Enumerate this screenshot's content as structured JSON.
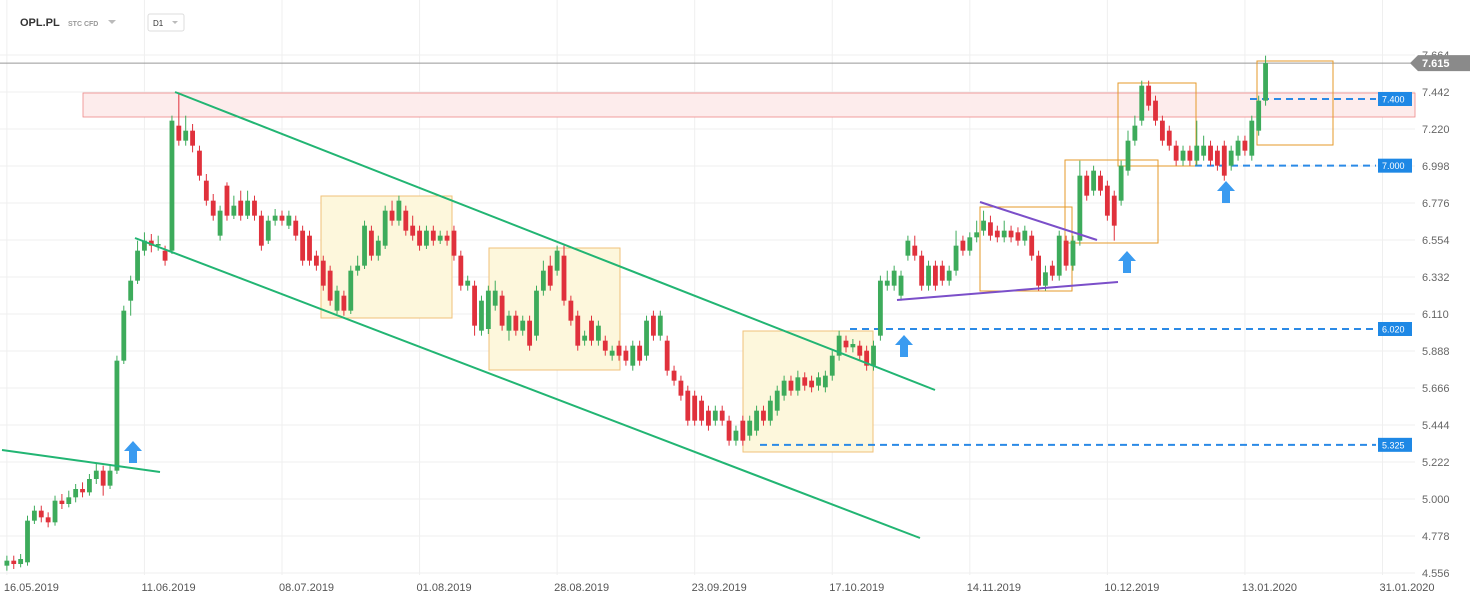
{
  "header": {
    "symbol": "OPL.PL",
    "instrument": "STC CFD",
    "interval": "D1"
  },
  "chart_data": {
    "type": "candlestick",
    "up_color": "#3dab5b",
    "down_color": "#e0313c",
    "ylim": [
      4.544,
      7.994
    ],
    "yticks": [
      {
        "value": 7.664,
        "label": "7.664"
      },
      {
        "value": 7.442,
        "label": "7.442"
      },
      {
        "value": 7.22,
        "label": "7.220"
      },
      {
        "value": 6.998,
        "label": "6.998"
      },
      {
        "value": 6.776,
        "label": "6.776"
      },
      {
        "value": 6.554,
        "label": "6.554"
      },
      {
        "value": 6.332,
        "label": "6.332"
      },
      {
        "value": 6.11,
        "label": "6.110"
      },
      {
        "value": 5.888,
        "label": "5.888"
      },
      {
        "value": 5.666,
        "label": "5.666"
      },
      {
        "value": 5.444,
        "label": "5.444"
      },
      {
        "value": 5.222,
        "label": "5.222"
      },
      {
        "value": 5,
        "label": "5.000"
      },
      {
        "value": 4.778,
        "label": "4.778"
      },
      {
        "value": 4.556,
        "label": "4.556"
      }
    ],
    "xlim": [
      -1,
      204
    ],
    "xticks": [
      {
        "value": 0,
        "label": "16.05.2019"
      },
      {
        "value": 20,
        "label": "11.06.2019"
      },
      {
        "value": 40,
        "label": "08.07.2019"
      },
      {
        "value": 60,
        "label": "01.08.2019"
      },
      {
        "value": 80,
        "label": "28.08.2019"
      },
      {
        "value": 100,
        "label": "23.09.2019"
      },
      {
        "value": 120,
        "label": "17.10.2019"
      },
      {
        "value": 140,
        "label": "14.11.2019"
      },
      {
        "value": 160,
        "label": "10.12.2019"
      },
      {
        "value": 180,
        "label": "13.01.2020"
      },
      {
        "value": 200,
        "label": "31.01.2020"
      }
    ],
    "grid": true,
    "last_price": 7.615,
    "levels": [
      {
        "value": 7.4,
        "label": "7.400"
      },
      {
        "value": 7,
        "label": "7.000"
      },
      {
        "value": 6.02,
        "label": "6.020"
      },
      {
        "value": 5.325,
        "label": "5.325"
      }
    ],
    "candles": [
      [
        4.6,
        4.66,
        4.57,
        4.63
      ],
      [
        4.63,
        4.66,
        4.58,
        4.61
      ],
      [
        4.61,
        4.67,
        4.59,
        4.64
      ],
      [
        4.62,
        4.9,
        4.6,
        4.87
      ],
      [
        4.87,
        4.96,
        4.85,
        4.93
      ],
      [
        4.93,
        4.96,
        4.86,
        4.89
      ],
      [
        4.89,
        4.92,
        4.83,
        4.86
      ],
      [
        4.86,
        5.02,
        4.84,
        4.99
      ],
      [
        4.99,
        5.03,
        4.94,
        4.97
      ],
      [
        4.97,
        5.05,
        4.95,
        5.01
      ],
      [
        5.01,
        5.09,
        4.98,
        5.06
      ],
      [
        5.06,
        5.1,
        5.01,
        5.04
      ],
      [
        5.04,
        5.15,
        5.02,
        5.12
      ],
      [
        5.12,
        5.21,
        5.09,
        5.17
      ],
      [
        5.17,
        5.2,
        5.02,
        5.08
      ],
      [
        5.08,
        5.21,
        5.06,
        5.17
      ],
      [
        5.17,
        5.86,
        5.15,
        5.83
      ],
      [
        5.83,
        6.16,
        5.81,
        6.13
      ],
      [
        6.19,
        6.34,
        6.1,
        6.31
      ],
      [
        6.31,
        6.55,
        6.29,
        6.49
      ],
      [
        6.49,
        6.6,
        6.46,
        6.55
      ],
      [
        6.55,
        6.59,
        6.48,
        6.52
      ],
      [
        6.52,
        6.58,
        6.49,
        6.53
      ],
      [
        6.49,
        6.52,
        6.4,
        6.43
      ],
      [
        6.49,
        7.3,
        6.47,
        7.27
      ],
      [
        7.24,
        7.44,
        7.12,
        7.15
      ],
      [
        7.15,
        7.3,
        7.12,
        7.21
      ],
      [
        7.21,
        7.25,
        7.08,
        7.12
      ],
      [
        7.09,
        7.12,
        6.91,
        6.94
      ],
      [
        6.91,
        6.95,
        6.76,
        6.79
      ],
      [
        6.79,
        6.83,
        6.67,
        6.7
      ],
      [
        6.58,
        6.76,
        6.55,
        6.73
      ],
      [
        6.88,
        6.9,
        6.67,
        6.7
      ],
      [
        6.7,
        6.82,
        6.68,
        6.76
      ],
      [
        6.79,
        6.85,
        6.67,
        6.7
      ],
      [
        6.7,
        6.85,
        6.68,
        6.79
      ],
      [
        6.79,
        6.82,
        6.67,
        6.7
      ],
      [
        6.7,
        6.73,
        6.49,
        6.52
      ],
      [
        6.55,
        6.7,
        6.53,
        6.67
      ],
      [
        6.67,
        6.74,
        6.64,
        6.7
      ],
      [
        6.7,
        6.73,
        6.64,
        6.67
      ],
      [
        6.64,
        6.73,
        6.62,
        6.7
      ],
      [
        6.67,
        6.7,
        6.55,
        6.58
      ],
      [
        6.61,
        6.64,
        6.4,
        6.43
      ],
      [
        6.58,
        6.61,
        6.4,
        6.43
      ],
      [
        6.46,
        6.49,
        6.37,
        6.4
      ],
      [
        6.43,
        6.46,
        6.25,
        6.28
      ],
      [
        6.37,
        6.4,
        6.16,
        6.19
      ],
      [
        6.13,
        6.28,
        6.11,
        6.25
      ],
      [
        6.22,
        6.25,
        6.1,
        6.13
      ],
      [
        6.13,
        6.4,
        6.11,
        6.37
      ],
      [
        6.37,
        6.46,
        6.34,
        6.4
      ],
      [
        6.4,
        6.67,
        6.38,
        6.64
      ],
      [
        6.61,
        6.64,
        6.43,
        6.46
      ],
      [
        6.46,
        6.58,
        6.43,
        6.55
      ],
      [
        6.52,
        6.76,
        6.5,
        6.73
      ],
      [
        6.73,
        6.79,
        6.64,
        6.67
      ],
      [
        6.67,
        6.82,
        6.64,
        6.79
      ],
      [
        6.73,
        6.76,
        6.58,
        6.61
      ],
      [
        6.64,
        6.7,
        6.55,
        6.58
      ],
      [
        6.61,
        6.64,
        6.49,
        6.52
      ],
      [
        6.52,
        6.64,
        6.5,
        6.61
      ],
      [
        6.61,
        6.64,
        6.52,
        6.55
      ],
      [
        6.55,
        6.61,
        6.53,
        6.58
      ],
      [
        6.58,
        6.61,
        6.52,
        6.55
      ],
      [
        6.61,
        6.64,
        6.43,
        6.46
      ],
      [
        6.46,
        6.49,
        6.25,
        6.28
      ],
      [
        6.28,
        6.34,
        6.25,
        6.31
      ],
      [
        6.28,
        6.31,
        5.98,
        6.04
      ],
      [
        6.01,
        6.22,
        5.98,
        6.19
      ],
      [
        6.02,
        6.28,
        5.99,
        6.25
      ],
      [
        6.16,
        6.31,
        6.13,
        6.25
      ],
      [
        6.22,
        6.25,
        6.01,
        6.04
      ],
      [
        6.01,
        6.13,
        5.95,
        6.1
      ],
      [
        6.1,
        6.13,
        5.98,
        6.01
      ],
      [
        6.01,
        6.1,
        5.98,
        6.07
      ],
      [
        6.07,
        6.1,
        5.89,
        5.92
      ],
      [
        5.98,
        6.28,
        5.95,
        6.25
      ],
      [
        6.25,
        6.43,
        6.22,
        6.37
      ],
      [
        6.4,
        6.46,
        6.25,
        6.28
      ],
      [
        6.37,
        6.52,
        6.34,
        6.49
      ],
      [
        6.46,
        6.52,
        6.16,
        6.19
      ],
      [
        6.19,
        6.22,
        6.04,
        6.07
      ],
      [
        6.1,
        6.13,
        5.89,
        5.92
      ],
      [
        5.95,
        6.01,
        5.92,
        5.98
      ],
      [
        6.07,
        6.1,
        5.92,
        5.95
      ],
      [
        5.95,
        6.07,
        5.92,
        6.04
      ],
      [
        5.95,
        5.98,
        5.86,
        5.89
      ],
      [
        5.86,
        5.92,
        5.83,
        5.89
      ],
      [
        5.92,
        5.95,
        5.83,
        5.86
      ],
      [
        5.89,
        5.92,
        5.8,
        5.83
      ],
      [
        5.8,
        5.95,
        5.77,
        5.92
      ],
      [
        5.92,
        5.95,
        5.8,
        5.83
      ],
      [
        5.86,
        6.1,
        5.83,
        6.07
      ],
      [
        6.1,
        6.13,
        5.95,
        5.98
      ],
      [
        5.98,
        6.13,
        5.95,
        6.1
      ],
      [
        5.95,
        5.98,
        5.74,
        5.77
      ],
      [
        5.77,
        5.8,
        5.68,
        5.71
      ],
      [
        5.71,
        5.74,
        5.59,
        5.62
      ],
      [
        5.65,
        5.68,
        5.44,
        5.47
      ],
      [
        5.62,
        5.65,
        5.44,
        5.47
      ],
      [
        5.59,
        5.62,
        5.44,
        5.47
      ],
      [
        5.53,
        5.56,
        5.41,
        5.44
      ],
      [
        5.47,
        5.56,
        5.44,
        5.53
      ],
      [
        5.53,
        5.56,
        5.44,
        5.47
      ],
      [
        5.47,
        5.5,
        5.32,
        5.35
      ],
      [
        5.35,
        5.44,
        5.32,
        5.41
      ],
      [
        5.47,
        5.5,
        5.32,
        5.35
      ],
      [
        5.38,
        5.5,
        5.35,
        5.47
      ],
      [
        5.41,
        5.56,
        5.38,
        5.53
      ],
      [
        5.53,
        5.56,
        5.44,
        5.47
      ],
      [
        5.47,
        5.62,
        5.44,
        5.59
      ],
      [
        5.53,
        5.68,
        5.5,
        5.65
      ],
      [
        5.62,
        5.74,
        5.59,
        5.71
      ],
      [
        5.71,
        5.74,
        5.62,
        5.65
      ],
      [
        5.65,
        5.77,
        5.62,
        5.73
      ],
      [
        5.73,
        5.76,
        5.65,
        5.68
      ],
      [
        5.71,
        5.74,
        5.64,
        5.67
      ],
      [
        5.68,
        5.76,
        5.65,
        5.73
      ],
      [
        5.67,
        5.77,
        5.64,
        5.74
      ],
      [
        5.74,
        5.89,
        5.71,
        5.86
      ],
      [
        5.86,
        6.01,
        5.83,
        5.98
      ],
      [
        5.95,
        5.98,
        5.88,
        5.91
      ],
      [
        5.91,
        5.96,
        5.88,
        5.93
      ],
      [
        5.92,
        5.95,
        5.83,
        5.86
      ],
      [
        5.89,
        5.92,
        5.77,
        5.8
      ],
      [
        5.8,
        5.95,
        5.77,
        5.92
      ],
      [
        5.98,
        6.34,
        5.95,
        6.31
      ],
      [
        6.28,
        6.37,
        6.25,
        6.31
      ],
      [
        6.28,
        6.4,
        6.25,
        6.37
      ],
      [
        6.22,
        6.37,
        6.19,
        6.34
      ],
      [
        6.46,
        6.58,
        6.43,
        6.55
      ],
      [
        6.52,
        6.58,
        6.43,
        6.46
      ],
      [
        6.46,
        6.49,
        6.25,
        6.28
      ],
      [
        6.28,
        6.43,
        6.25,
        6.4
      ],
      [
        6.4,
        6.43,
        6.25,
        6.28
      ],
      [
        6.4,
        6.43,
        6.28,
        6.31
      ],
      [
        6.31,
        6.4,
        6.28,
        6.37
      ],
      [
        6.37,
        6.61,
        6.34,
        6.52
      ],
      [
        6.55,
        6.58,
        6.46,
        6.49
      ],
      [
        6.49,
        6.6,
        6.46,
        6.57
      ],
      [
        6.57,
        6.67,
        6.54,
        6.6
      ],
      [
        6.61,
        6.73,
        6.58,
        6.67
      ],
      [
        6.66,
        6.7,
        6.55,
        6.58
      ],
      [
        6.61,
        6.64,
        6.54,
        6.57
      ],
      [
        6.57,
        6.67,
        6.54,
        6.61
      ],
      [
        6.61,
        6.64,
        6.54,
        6.57
      ],
      [
        6.6,
        6.63,
        6.52,
        6.55
      ],
      [
        6.55,
        6.64,
        6.52,
        6.61
      ],
      [
        6.58,
        6.61,
        6.43,
        6.46
      ],
      [
        6.46,
        6.49,
        6.25,
        6.28
      ],
      [
        6.28,
        6.4,
        6.25,
        6.36
      ],
      [
        6.4,
        6.43,
        6.31,
        6.34
      ],
      [
        6.34,
        6.61,
        6.31,
        6.58
      ],
      [
        6.55,
        6.58,
        6.37,
        6.4
      ],
      [
        6.4,
        6.58,
        6.37,
        6.55
      ],
      [
        6.55,
        7.03,
        6.52,
        6.94
      ],
      [
        6.94,
        6.97,
        6.79,
        6.82
      ],
      [
        6.85,
        7.0,
        6.82,
        6.97
      ],
      [
        6.94,
        6.97,
        6.82,
        6.85
      ],
      [
        6.88,
        6.91,
        6.67,
        6.7
      ],
      [
        6.82,
        6.85,
        6.55,
        6.64
      ],
      [
        6.79,
        7.03,
        6.76,
        7.0
      ],
      [
        6.97,
        7.21,
        6.94,
        7.15
      ],
      [
        7.15,
        7.3,
        7.12,
        7.24
      ],
      [
        7.27,
        7.51,
        7.24,
        7.48
      ],
      [
        7.48,
        7.51,
        7.33,
        7.36
      ],
      [
        7.39,
        7.42,
        7.24,
        7.27
      ],
      [
        7.27,
        7.3,
        7.12,
        7.15
      ],
      [
        7.21,
        7.24,
        7.09,
        7.12
      ],
      [
        7.12,
        7.15,
        7.0,
        7.03
      ],
      [
        7.03,
        7.12,
        7.0,
        7.09
      ],
      [
        7.09,
        7.12,
        7.0,
        7.03
      ],
      [
        7.03,
        7.27,
        7.0,
        7.12
      ],
      [
        7.06,
        7.18,
        7.03,
        7.12
      ],
      [
        7.12,
        7.15,
        7.0,
        7.03
      ],
      [
        7.09,
        7.12,
        6.97,
        7.0
      ],
      [
        7.12,
        7.15,
        6.91,
        6.94
      ],
      [
        7.0,
        7.12,
        6.97,
        7.09
      ],
      [
        7.06,
        7.18,
        7.03,
        7.15
      ],
      [
        7.15,
        7.18,
        7.06,
        7.09
      ],
      [
        7.06,
        7.3,
        7.03,
        7.27
      ],
      [
        7.21,
        7.42,
        7.18,
        7.39
      ],
      [
        7.39,
        7.66,
        7.36,
        7.615
      ]
    ]
  }
}
